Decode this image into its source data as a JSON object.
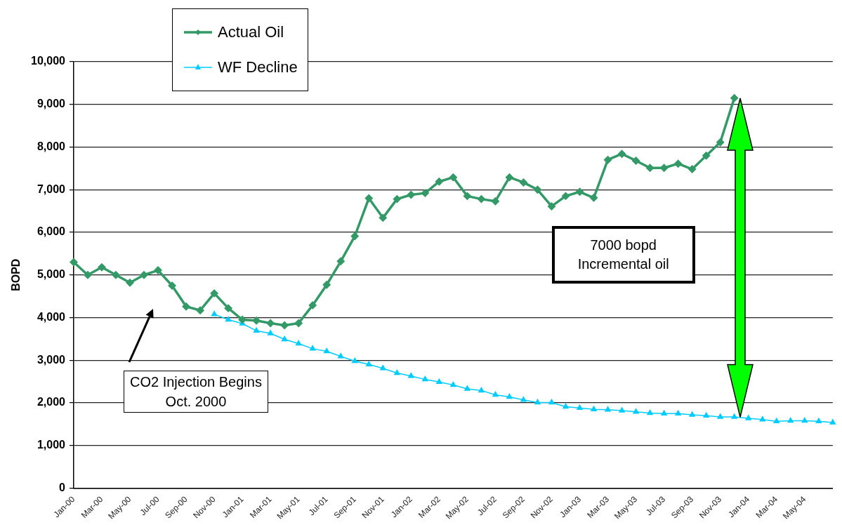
{
  "chart_data": {
    "type": "line",
    "ylabel": "BOPD",
    "categories": [
      "Jan-00",
      null,
      "Mar-00",
      null,
      "May-00",
      null,
      "Jul-00",
      null,
      "Sep-00",
      null,
      "Nov-00",
      null,
      "Jan-01",
      null,
      "Mar-01",
      null,
      "May-01",
      null,
      "Jul-01",
      null,
      "Sep-01",
      null,
      "Nov-01",
      null,
      "Jan-02",
      null,
      "Mar-02",
      null,
      "May-02",
      null,
      "Jul-02",
      null,
      "Sep-02",
      null,
      "Nov-02",
      null,
      "Jan-03",
      null,
      "Mar-03",
      null,
      "May-03",
      null,
      "Jul-03",
      null,
      "Sep-03",
      null,
      "Nov-03",
      null,
      "Jan-04",
      null,
      "Mar-04",
      null,
      "May-04",
      null,
      null
    ],
    "series": [
      {
        "name": "Actual Oil",
        "color": "#339966",
        "marker": "diamond",
        "values": [
          5300,
          5000,
          5180,
          5000,
          4820,
          5000,
          5110,
          4750,
          4260,
          4170,
          4570,
          4220,
          3950,
          3930,
          3870,
          3820,
          3870,
          4290,
          4770,
          5320,
          5910,
          6800,
          6340,
          6780,
          6880,
          6920,
          7190,
          7290,
          6850,
          6780,
          6730,
          7290,
          7170,
          7000,
          6610,
          6850,
          6950,
          6810,
          7700,
          7840,
          7680,
          7510,
          7510,
          7610,
          7480,
          7800,
          8110,
          9150,
          null,
          null,
          null,
          null,
          null,
          null,
          null
        ]
      },
      {
        "name": "WF Decline",
        "color": "#00ccff",
        "marker": "triangle",
        "values": [
          null,
          null,
          null,
          null,
          null,
          null,
          null,
          null,
          null,
          null,
          4080,
          3950,
          3860,
          3690,
          3630,
          3490,
          3390,
          3270,
          3210,
          3090,
          2980,
          2900,
          2810,
          2700,
          2630,
          2550,
          2490,
          2420,
          2330,
          2290,
          2190,
          2140,
          2070,
          2010,
          2010,
          1910,
          1880,
          1850,
          1840,
          1820,
          1790,
          1760,
          1750,
          1750,
          1720,
          1700,
          1670,
          1670,
          1640,
          1610,
          1570,
          1580,
          1580,
          1570,
          1540
        ]
      }
    ],
    "ylim": [
      0,
      10000
    ],
    "yticks": [
      0,
      {
        "value": 1000,
        "label": "1,000"
      },
      {
        "value": 2000,
        "label": "2,000"
      },
      {
        "value": 3000,
        "label": "3,000"
      },
      {
        "value": 4000,
        "label": "4,000"
      },
      {
        "value": 5000,
        "label": "5,000"
      },
      {
        "value": 6000,
        "label": "6,000"
      },
      {
        "value": 7000,
        "label": "7,000"
      },
      {
        "value": 8000,
        "label": "8,000"
      },
      {
        "value": 9000,
        "label": "9,000"
      },
      {
        "value": 10000,
        "label": "10,000"
      }
    ],
    "grid": "y",
    "legend": "top left",
    "annotations": [
      "CO2 Injection Begins\nOct. 2000",
      "7000 bopd\nIncremental oil"
    ]
  }
}
